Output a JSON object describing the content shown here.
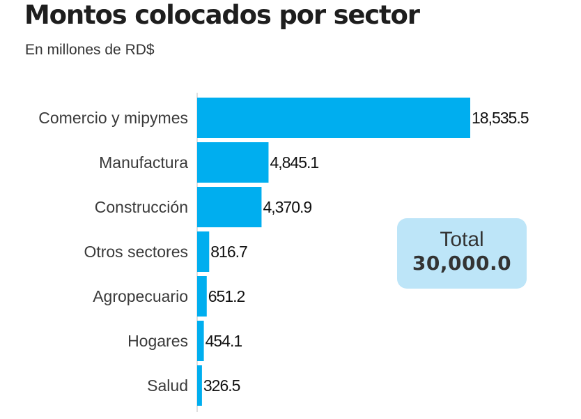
{
  "header": {
    "title": "Montos colocados por sector",
    "subtitle": "En millones de RD$"
  },
  "total": {
    "label": "Total",
    "value": "30,000.0"
  },
  "colors": {
    "bar": "#00aeef",
    "axis": "#bfbfbf",
    "total_box": "#bde5f8"
  },
  "chart_data": {
    "type": "bar",
    "orientation": "horizontal",
    "title": "Montos colocados por sector",
    "subtitle": "En millones de RD$",
    "categories": [
      "Comercio y mipymes",
      "Manufactura",
      "Construcción",
      "Otros sectores",
      "Agropecuario",
      "Hogares",
      "Salud"
    ],
    "values": [
      18535.5,
      4845.1,
      4370.9,
      816.7,
      651.2,
      454.1,
      326.5
    ],
    "value_labels": [
      "18,535.5",
      "4,845.1",
      "4,370.9",
      "816.7",
      "651.2",
      "454.1",
      "326.5"
    ],
    "xlim": [
      0,
      18535.5
    ],
    "grid": false,
    "legend": "none"
  }
}
